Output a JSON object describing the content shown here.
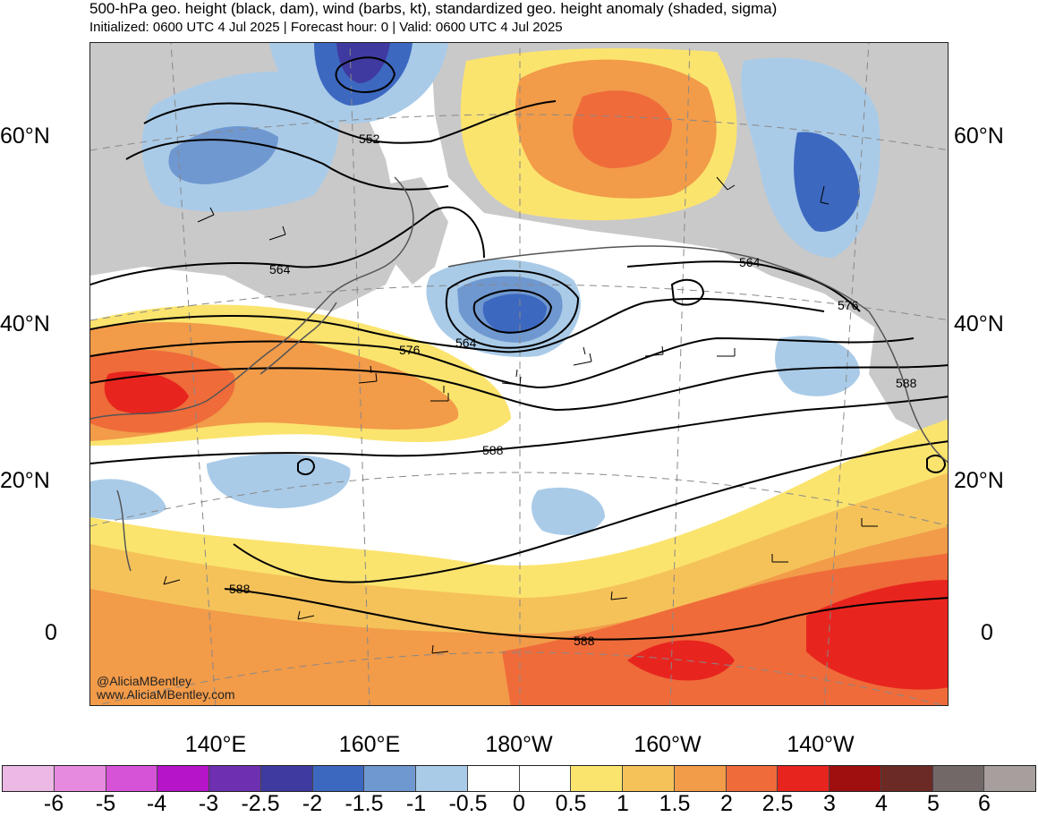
{
  "header": {
    "title": "500-hPa geo. height (black, dam), wind (barbs, kt), standardized geo. height anomaly (shaded, sigma)",
    "subtitle": "Initialized: 0600 UTC 4 Jul 2025 | Forecast hour: 0 | Valid: 0600 UTC 4 Jul 2025"
  },
  "latitude_labels": [
    "60°N",
    "40°N",
    "20°N",
    "0"
  ],
  "longitude_labels": [
    "140°E",
    "160°E",
    "180°W",
    "160°W",
    "140°W"
  ],
  "contour_labels": [
    "552",
    "564",
    "564",
    "576",
    "564",
    "576",
    "588",
    "588",
    "588",
    "588"
  ],
  "credits": {
    "handle": "@AliciaMBentley",
    "site": "www.AliciaMBentley.com"
  },
  "colorbar": {
    "colors": [
      "#ecb8e4",
      "#e68ae0",
      "#d653d8",
      "#b514c8",
      "#6e2fb0",
      "#3f3aa0",
      "#3d68c0",
      "#6f98d0",
      "#a9cbe8",
      "#ffffff",
      "#ffffff",
      "#fbe46e",
      "#f5c25a",
      "#f29b49",
      "#ef6b3a",
      "#e8241f",
      "#a00f0f",
      "#6b2a24",
      "#726868",
      "#a79e9e"
    ],
    "ticks": [
      "-6",
      "-5",
      "-4",
      "-3",
      "-2.5",
      "-2",
      "-1.5",
      "-1",
      "-0.5",
      "0",
      "0.5",
      "1",
      "1.5",
      "2",
      "2.5",
      "3",
      "4",
      "5",
      "6"
    ]
  }
}
